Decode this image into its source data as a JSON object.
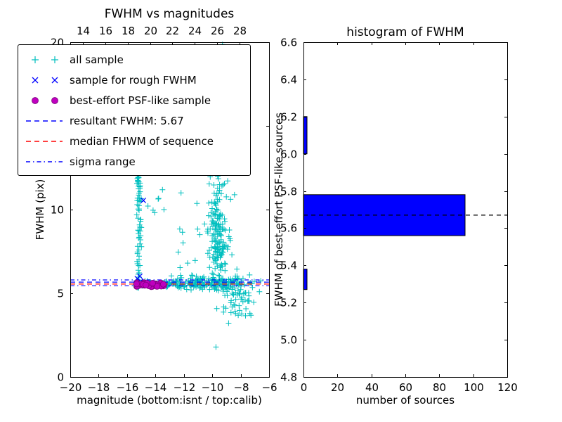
{
  "figure": {
    "background": "#ffffff"
  },
  "colors": {
    "cyan": "#00bfbf",
    "blue": "#0000ff",
    "magenta": "#bf00bf",
    "magenta_edge": "#7a007a",
    "red": "#ff0000",
    "bar_fill": "#0000ff",
    "bar_edge": "#000000",
    "median_dash": "#000000",
    "axis": "#000000"
  },
  "chart_data": [
    {
      "id": "fwhm_vs_magnitudes",
      "type": "scatter",
      "title": "FWHM vs magnitudes",
      "xlabel": "magnitude (bottom:isnt / top:calib)",
      "ylabel": "FWHM (pix)",
      "xlim": [
        -20,
        -6
      ],
      "ylim": [
        0,
        20
      ],
      "xticks": [
        -20,
        -18,
        -16,
        -14,
        -12,
        -10,
        -8,
        -6
      ],
      "xtick_labels": [
        "−20",
        "−18",
        "−16",
        "−14",
        "−12",
        "−10",
        "−8",
        "−6"
      ],
      "yticks": [
        0,
        5,
        10,
        15,
        20
      ],
      "ytick_labels": [
        "0",
        "5",
        "10",
        "15",
        "20"
      ],
      "top_axis": {
        "lim": [
          12.9,
          30.6
        ],
        "ticks": [
          14,
          16,
          18,
          20,
          22,
          24,
          26,
          28
        ],
        "tick_labels": [
          "14",
          "16",
          "18",
          "20",
          "22",
          "24",
          "26",
          "28"
        ]
      },
      "grid": false,
      "legend_position": "upper left",
      "legend": [
        {
          "label": "all sample",
          "marker": "plus",
          "color": "cyan"
        },
        {
          "label": "sample for rough FWHM",
          "marker": "x",
          "color": "blue"
        },
        {
          "label": "best-effort PSF-like sample",
          "marker": "circle",
          "color": "magenta",
          "edge": "magenta_edge"
        },
        {
          "label": "resultant FWHM: 5.67",
          "marker": "line-dashed",
          "color": "blue"
        },
        {
          "label": "median FHWM of sequence",
          "marker": "line-dashed",
          "color": "red"
        },
        {
          "label": "sigma range",
          "marker": "line-dashdot",
          "color": "blue"
        }
      ],
      "lines": {
        "resultant_fwhm": 5.67,
        "median_fwhm": 5.55,
        "sigma_range": [
          5.45,
          5.8
        ]
      },
      "series": {
        "all_sample": {
          "marker": "plus",
          "color": "cyan",
          "clusters": [
            {
              "n": 90,
              "x": [
                "u",
                -15.45,
                -13.0
              ],
              "y": [
                "g",
                5.55,
                0.1
              ]
            },
            {
              "n": 160,
              "x": [
                "u",
                -13.0,
                -8.2
              ],
              "y": [
                "g",
                5.6,
                0.18
              ]
            },
            {
              "n": 40,
              "x": [
                "u",
                -9.2,
                -7.4
              ],
              "y": [
                "g",
                5.0,
                0.55
              ]
            },
            {
              "n": 70,
              "x": [
                "g",
                -15.15,
                0.1
              ],
              "y": [
                "u",
                5.8,
                12.9
              ]
            },
            {
              "n": 6,
              "x": [
                "u",
                -14.6,
                -13.2
              ],
              "y": [
                "u",
                9.5,
                11.5
              ]
            },
            {
              "n": 170,
              "x": [
                "g",
                -9.6,
                0.35
              ],
              "y": [
                "g",
                8.6,
                2.2
              ]
            },
            {
              "n": 60,
              "x": [
                "u",
                -11.2,
                -8.4
              ],
              "y": [
                "u",
                4.2,
                19.8
              ]
            },
            {
              "n": 10,
              "x": [
                "u",
                -9.9,
                -9.2
              ],
              "y": [
                "u",
                18.6,
                19.9
              ]
            },
            {
              "n": 15,
              "x": [
                "u",
                -8.9,
                -6.6
              ],
              "y": [
                "u",
                3.1,
                5.2
              ]
            },
            {
              "n": 12,
              "x": [
                "u",
                -8.2,
                -6.3
              ],
              "y": [
                "g",
                5.6,
                0.25
              ]
            },
            {
              "n": 8,
              "x": [
                "u",
                -12.6,
                -11.2
              ],
              "y": [
                "u",
                5.9,
                9.0
              ]
            }
          ],
          "extra_points": [
            [
              -12.2,
              11.0
            ],
            [
              -11.6,
              12.6
            ],
            [
              -13.4,
              10.0
            ]
          ]
        },
        "rough_fwhm_sample": {
          "marker": "x",
          "color": "blue",
          "points": [
            [
              -15.35,
              5.62
            ],
            [
              -15.2,
              5.5
            ],
            [
              -15.05,
              5.72
            ],
            [
              -14.95,
              5.48
            ],
            [
              -15.28,
              5.88
            ],
            [
              -14.85,
              10.55
            ],
            [
              -15.1,
              6.02
            ],
            [
              -14.72,
              5.58
            ]
          ]
        },
        "psf_like_sample": {
          "marker": "circle",
          "color": "magenta",
          "edge": "magenta_edge",
          "cluster": {
            "n": 30,
            "x": [
              "u",
              -15.35,
              -13.4
            ],
            "y": [
              "g",
              5.52,
              0.09
            ]
          }
        }
      }
    },
    {
      "id": "fwhm_histogram",
      "type": "bar",
      "orientation": "horizontal",
      "title": "histogram of FWHM",
      "xlabel": "number of sources",
      "ylabel": "FWHM of best-effort PSF-like sources",
      "xlim": [
        0,
        120
      ],
      "ylim": [
        4.8,
        6.6
      ],
      "xticks": [
        0,
        20,
        40,
        60,
        80,
        100,
        120
      ],
      "xtick_labels": [
        "0",
        "20",
        "40",
        "60",
        "80",
        "100",
        "120"
      ],
      "yticks": [
        4.8,
        5.0,
        5.2,
        5.4,
        5.6,
        5.8,
        6.0,
        6.2,
        6.4,
        6.6
      ],
      "ytick_labels": [
        "4.8",
        "5.0",
        "5.2",
        "5.4",
        "5.6",
        "5.8",
        "6.0",
        "6.2",
        "6.4",
        "6.6"
      ],
      "grid": false,
      "bar_color": "bar_fill",
      "bar_edge": "bar_edge",
      "bars": [
        {
          "fwhm_from": 5.27,
          "fwhm_to": 5.38,
          "count": 2
        },
        {
          "fwhm_from": 5.56,
          "fwhm_to": 5.78,
          "count": 95
        },
        {
          "fwhm_from": 6.0,
          "fwhm_to": 6.2,
          "count": 2
        }
      ],
      "median_line_fwhm": 5.67,
      "median_line_color": "median_dash"
    }
  ]
}
